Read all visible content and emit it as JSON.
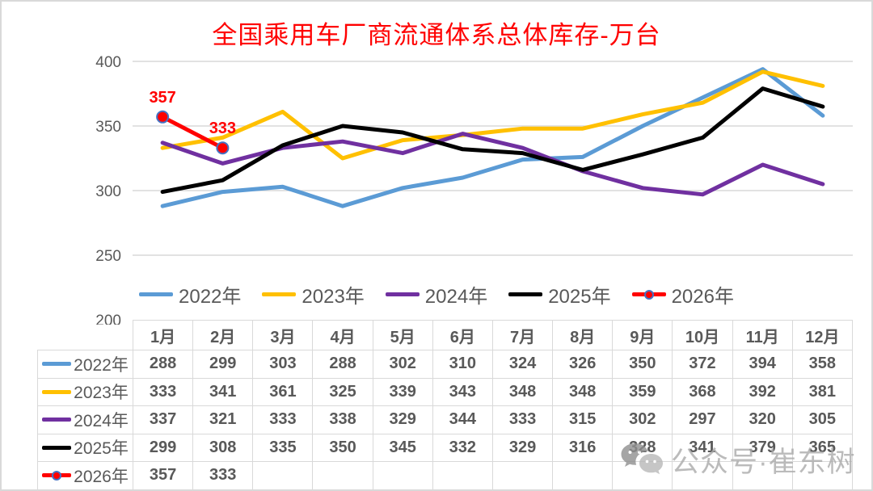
{
  "title": {
    "text": "全国乘用车厂商流通体系总体库存-万台",
    "color": "#FF0000"
  },
  "watermark": {
    "icon": "wechat-icon",
    "text": "公众号·崔东树"
  },
  "chart_data": {
    "type": "line",
    "title": "全国乘用车厂商流通体系总体库存-万台",
    "unit": "万台",
    "categories": [
      "1月",
      "2月",
      "3月",
      "4月",
      "5月",
      "6月",
      "7月",
      "8月",
      "9月",
      "10月",
      "11月",
      "12月"
    ],
    "series": [
      {
        "name": "2022年",
        "color": "#5B9BD5",
        "values": [
          288,
          299,
          303,
          288,
          302,
          310,
          324,
          326,
          350,
          372,
          394,
          358
        ]
      },
      {
        "name": "2023年",
        "color": "#FFC000",
        "values": [
          333,
          341,
          361,
          325,
          339,
          343,
          348,
          348,
          359,
          368,
          392,
          381
        ]
      },
      {
        "name": "2024年",
        "color": "#7030A0",
        "values": [
          337,
          321,
          333,
          338,
          329,
          344,
          333,
          315,
          302,
          297,
          320,
          305
        ]
      },
      {
        "name": "2025年",
        "color": "#000000",
        "values": [
          299,
          308,
          335,
          350,
          345,
          332,
          329,
          316,
          328,
          341,
          379,
          365
        ]
      },
      {
        "name": "2026年",
        "color": "#FF0000",
        "marker": true,
        "marker_stroke": "#4472C4",
        "show_labels": true,
        "label_color": "#FF0000",
        "values": [
          357,
          333,
          null,
          null,
          null,
          null,
          null,
          null,
          null,
          null,
          null,
          null
        ]
      }
    ],
    "ylim": [
      200,
      400
    ],
    "yticks": [
      400,
      350,
      300,
      250,
      200
    ],
    "gridline_color": "#D9D9D9",
    "grid": true,
    "legend_position": "bottom-inside",
    "xlabel": "",
    "ylabel": ""
  }
}
